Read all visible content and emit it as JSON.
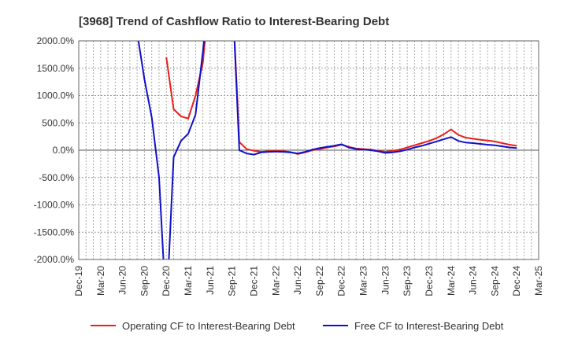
{
  "chart_data": {
    "type": "line",
    "title": "[3968]  Trend of Cashflow Ratio to Interest-Bearing Debt",
    "x_tick_labels": [
      "Dec-19",
      "Mar-20",
      "Jun-20",
      "Sep-20",
      "Dec-20",
      "Mar-21",
      "Jun-21",
      "Sep-21",
      "Dec-21",
      "Mar-22",
      "Jun-22",
      "Sep-22",
      "Dec-22",
      "Mar-23",
      "Jun-23",
      "Sep-23",
      "Dec-23",
      "Mar-24",
      "Jun-24",
      "Sep-24",
      "Dec-24",
      "Mar-25"
    ],
    "y_tick_labels": [
      "2000.0%",
      "1500.0%",
      "1000.0%",
      "500.0%",
      "0.0%",
      "-500.0%",
      "-1000.0%",
      "-1500.0%",
      "-2000.0%"
    ],
    "y_ticks": [
      2000,
      1500,
      1000,
      500,
      0,
      -500,
      -1000,
      -1500,
      -2000
    ],
    "ylim": [
      -2000,
      2000
    ],
    "x_range": [
      "Dec-19",
      "Mar-25"
    ],
    "grid": true,
    "legend_position": "bottom",
    "series": [
      {
        "name": "Operating CF to Interest-Bearing Debt",
        "color": "#e8201a",
        "points": [
          [
            "Sep-20",
            3000
          ],
          [
            "Dec-20",
            1700
          ],
          [
            "Jan-21",
            750
          ],
          [
            "Feb-21",
            620
          ],
          [
            "Mar-21",
            580
          ],
          [
            "Apr-21",
            1000
          ],
          [
            "May-21",
            1600
          ],
          [
            "Jun-21",
            3000
          ],
          [
            "Sep-21",
            3000
          ],
          [
            "Oct-21",
            150
          ],
          [
            "Nov-21",
            20
          ],
          [
            "Dec-21",
            -10
          ],
          [
            "Jan-22",
            -30
          ],
          [
            "Feb-22",
            -20
          ],
          [
            "Mar-22",
            -15
          ],
          [
            "Apr-22",
            -20
          ],
          [
            "May-22",
            -35
          ],
          [
            "Jun-22",
            -70
          ],
          [
            "Jul-22",
            -40
          ],
          [
            "Aug-22",
            0
          ],
          [
            "Sep-22",
            20
          ],
          [
            "Oct-22",
            50
          ],
          [
            "Nov-22",
            70
          ],
          [
            "Dec-22",
            100
          ],
          [
            "Jan-23",
            60
          ],
          [
            "Feb-23",
            30
          ],
          [
            "Mar-23",
            20
          ],
          [
            "Apr-23",
            10
          ],
          [
            "May-23",
            -10
          ],
          [
            "Jun-23",
            -30
          ],
          [
            "Jul-23",
            -10
          ],
          [
            "Aug-23",
            10
          ],
          [
            "Sep-23",
            50
          ],
          [
            "Oct-23",
            90
          ],
          [
            "Nov-23",
            130
          ],
          [
            "Dec-23",
            170
          ],
          [
            "Jan-24",
            220
          ],
          [
            "Feb-24",
            290
          ],
          [
            "Mar-24",
            380
          ],
          [
            "Apr-24",
            280
          ],
          [
            "May-24",
            230
          ],
          [
            "Jun-24",
            210
          ],
          [
            "Jul-24",
            190
          ],
          [
            "Aug-24",
            175
          ],
          [
            "Sep-24",
            160
          ],
          [
            "Oct-24",
            130
          ],
          [
            "Nov-24",
            100
          ],
          [
            "Dec-24",
            80
          ]
        ]
      },
      {
        "name": "Free CF to Interest-Bearing Debt",
        "color": "#1010c8",
        "points": [
          [
            "Jul-20",
            3000
          ],
          [
            "Sep-20",
            1300
          ],
          [
            "Oct-20",
            600
          ],
          [
            "Nov-20",
            -500
          ],
          [
            "Dec-20",
            -3000
          ],
          [
            "Jan-21",
            -130
          ],
          [
            "Feb-21",
            170
          ],
          [
            "Mar-21",
            300
          ],
          [
            "Apr-21",
            650
          ],
          [
            "May-21",
            1800
          ],
          [
            "Jun-21",
            3000
          ],
          [
            "Sep-21",
            3000
          ],
          [
            "Oct-21",
            0
          ],
          [
            "Nov-21",
            -60
          ],
          [
            "Dec-21",
            -80
          ],
          [
            "Jan-22",
            -40
          ],
          [
            "Feb-22",
            -30
          ],
          [
            "Mar-22",
            -25
          ],
          [
            "Apr-22",
            -30
          ],
          [
            "May-22",
            -40
          ],
          [
            "Jun-22",
            -60
          ],
          [
            "Jul-22",
            -30
          ],
          [
            "Aug-22",
            10
          ],
          [
            "Sep-22",
            40
          ],
          [
            "Oct-22",
            60
          ],
          [
            "Nov-22",
            80
          ],
          [
            "Dec-22",
            110
          ],
          [
            "Jan-23",
            50
          ],
          [
            "Feb-23",
            20
          ],
          [
            "Mar-23",
            10
          ],
          [
            "Apr-23",
            0
          ],
          [
            "May-23",
            -20
          ],
          [
            "Jun-23",
            -50
          ],
          [
            "Jul-23",
            -40
          ],
          [
            "Aug-23",
            -20
          ],
          [
            "Sep-23",
            10
          ],
          [
            "Oct-23",
            50
          ],
          [
            "Nov-23",
            80
          ],
          [
            "Dec-23",
            120
          ],
          [
            "Jan-24",
            160
          ],
          [
            "Feb-24",
            200
          ],
          [
            "Mar-24",
            240
          ],
          [
            "Apr-24",
            170
          ],
          [
            "May-24",
            140
          ],
          [
            "Jun-24",
            130
          ],
          [
            "Jul-24",
            115
          ],
          [
            "Aug-24",
            100
          ],
          [
            "Sep-24",
            90
          ],
          [
            "Oct-24",
            70
          ],
          [
            "Nov-24",
            50
          ],
          [
            "Dec-24",
            40
          ]
        ]
      }
    ]
  }
}
